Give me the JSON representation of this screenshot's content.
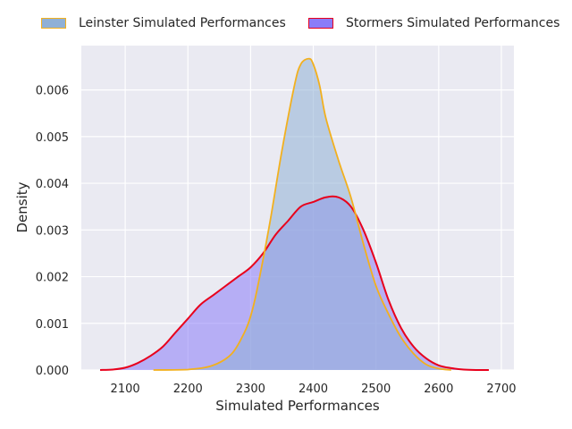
{
  "chart_data": {
    "type": "area",
    "xlabel": "Simulated Performances",
    "ylabel": "Density",
    "xlim": [
      2030,
      2720
    ],
    "ylim": [
      0,
      0.00695
    ],
    "xticks": [
      "2100",
      "2200",
      "2300",
      "2400",
      "2500",
      "2600",
      "2700"
    ],
    "yticks": [
      "0.000",
      "0.001",
      "0.002",
      "0.003",
      "0.004",
      "0.005",
      "0.006"
    ],
    "grid": true,
    "legend_position": "top",
    "series": [
      {
        "name": "Leinster Simulated Performances",
        "fill_color": "#8fb0d6",
        "line_color": "#f2b01e",
        "x": [
          2145,
          2200,
          2240,
          2270,
          2290,
          2300,
          2310,
          2330,
          2350,
          2370,
          2380,
          2393,
          2400,
          2410,
          2420,
          2440,
          2460,
          2480,
          2500,
          2520,
          2540,
          2560,
          2580,
          2600,
          2620
        ],
        "y": [
          0,
          1e-05,
          0.0001,
          0.00035,
          0.0008,
          0.00115,
          0.0017,
          0.0031,
          0.0047,
          0.0061,
          0.00655,
          0.00667,
          0.00655,
          0.0061,
          0.0054,
          0.0045,
          0.0037,
          0.0027,
          0.0018,
          0.0012,
          0.0007,
          0.00035,
          0.00012,
          3e-05,
          0
        ]
      },
      {
        "name": "Stormers Simulated Performances",
        "fill_color": "#8a7cf8",
        "line_color": "#e8001c",
        "x": [
          2060,
          2080,
          2100,
          2120,
          2140,
          2160,
          2180,
          2200,
          2220,
          2240,
          2260,
          2280,
          2300,
          2320,
          2340,
          2360,
          2380,
          2400,
          2420,
          2440,
          2460,
          2480,
          2500,
          2520,
          2540,
          2560,
          2580,
          2600,
          2620,
          2640,
          2660,
          2680
        ],
        "y": [
          0,
          1e-05,
          5e-05,
          0.00015,
          0.0003,
          0.0005,
          0.0008,
          0.0011,
          0.0014,
          0.0016,
          0.0018,
          0.002,
          0.0022,
          0.0025,
          0.0029,
          0.0032,
          0.0035,
          0.0036,
          0.0037,
          0.0037,
          0.0035,
          0.003,
          0.0023,
          0.0015,
          0.0009,
          0.0005,
          0.00025,
          0.0001,
          4e-05,
          1e-05,
          0,
          0
        ]
      }
    ]
  }
}
